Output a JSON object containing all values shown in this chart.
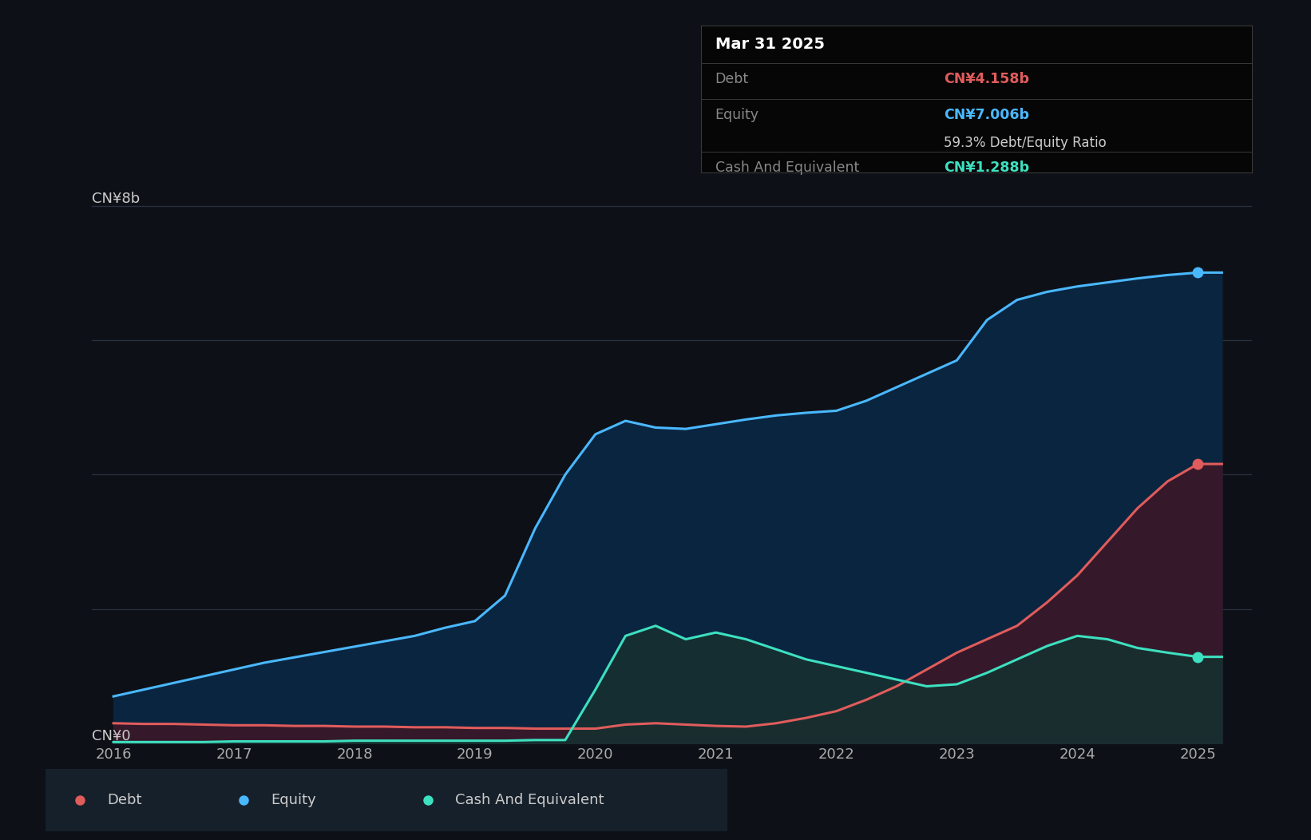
{
  "bg_color": "#0d1117",
  "plot_bg_color": "#0d1117",
  "y_label_8b": "CN¥8b",
  "y_label_0": "CN¥0",
  "x_ticks": [
    "2016",
    "2017",
    "2018",
    "2019",
    "2020",
    "2021",
    "2022",
    "2023",
    "2024",
    "2025"
  ],
  "debt_color": "#e05c5c",
  "equity_color": "#4ab8ff",
  "cash_color": "#3de0c0",
  "equity_fill_color": "#0a2540",
  "debt_fill_color": "#3a1828",
  "cash_fill_color": "#163030",
  "tooltip_title": "Mar 31 2025",
  "tooltip_debt_label": "Debt",
  "tooltip_debt_val": "CN¥4.158b",
  "tooltip_equity_label": "Equity",
  "tooltip_equity_val": "CN¥7.006b",
  "tooltip_ratio": "59.3% Debt/Equity Ratio",
  "tooltip_cash_label": "Cash And Equivalent",
  "tooltip_cash_val": "CN¥1.288b",
  "legend_items": [
    "Debt",
    "Equity",
    "Cash And Equivalent"
  ],
  "legend_colors": [
    "#e05c5c",
    "#4ab8ff",
    "#3de0c0"
  ],
  "years": [
    2016.0,
    2016.25,
    2016.5,
    2016.75,
    2017.0,
    2017.25,
    2017.5,
    2017.75,
    2018.0,
    2018.25,
    2018.5,
    2018.75,
    2019.0,
    2019.25,
    2019.5,
    2019.75,
    2020.0,
    2020.25,
    2020.5,
    2020.75,
    2021.0,
    2021.25,
    2021.5,
    2021.75,
    2022.0,
    2022.25,
    2022.5,
    2022.75,
    2023.0,
    2023.25,
    2023.5,
    2023.75,
    2024.0,
    2024.25,
    2024.5,
    2024.75,
    2025.0,
    2025.2
  ],
  "equity_data": [
    0.7,
    0.8,
    0.9,
    1.0,
    1.1,
    1.2,
    1.28,
    1.36,
    1.44,
    1.52,
    1.6,
    1.72,
    1.82,
    2.2,
    3.2,
    4.0,
    4.6,
    4.8,
    4.7,
    4.68,
    4.75,
    4.82,
    4.88,
    4.92,
    4.95,
    5.1,
    5.3,
    5.5,
    5.7,
    6.3,
    6.6,
    6.72,
    6.8,
    6.86,
    6.92,
    6.97,
    7.006,
    7.006
  ],
  "debt_data": [
    0.3,
    0.29,
    0.29,
    0.28,
    0.27,
    0.27,
    0.26,
    0.26,
    0.25,
    0.25,
    0.24,
    0.24,
    0.23,
    0.23,
    0.22,
    0.22,
    0.22,
    0.28,
    0.3,
    0.28,
    0.26,
    0.25,
    0.3,
    0.38,
    0.48,
    0.65,
    0.85,
    1.1,
    1.35,
    1.55,
    1.75,
    2.1,
    2.5,
    3.0,
    3.5,
    3.9,
    4.158,
    4.158
  ],
  "cash_data": [
    0.02,
    0.02,
    0.02,
    0.02,
    0.03,
    0.03,
    0.03,
    0.03,
    0.04,
    0.04,
    0.04,
    0.04,
    0.04,
    0.04,
    0.05,
    0.05,
    0.8,
    1.6,
    1.75,
    1.55,
    1.65,
    1.55,
    1.4,
    1.25,
    1.15,
    1.05,
    0.95,
    0.85,
    0.88,
    1.05,
    1.25,
    1.45,
    1.6,
    1.55,
    1.42,
    1.35,
    1.288,
    1.288
  ],
  "ylim_max": 8.5,
  "grid_lines": [
    2,
    4,
    6,
    8
  ]
}
